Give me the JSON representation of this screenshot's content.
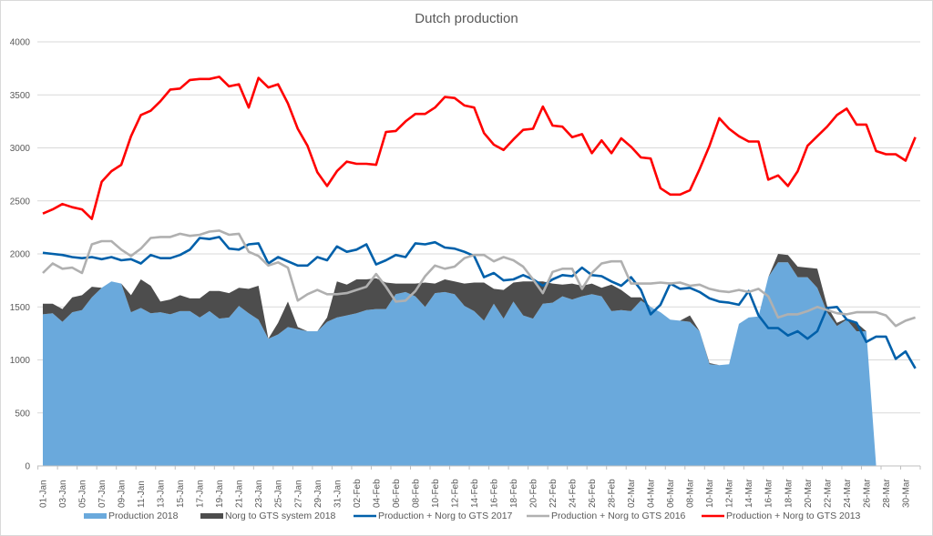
{
  "chart_data": {
    "type": "area+line",
    "title": "Dutch production",
    "xlabel": "",
    "ylabel": "",
    "ylim": [
      0,
      4000
    ],
    "yticks": [
      0,
      500,
      1000,
      1500,
      2000,
      2500,
      3000,
      3500,
      4000
    ],
    "grid": "horizontal",
    "legend_position": "bottom",
    "x": [
      "01-Jan",
      "02-Jan",
      "03-Jan",
      "04-Jan",
      "05-Jan",
      "06-Jan",
      "07-Jan",
      "08-Jan",
      "09-Jan",
      "10-Jan",
      "11-Jan",
      "12-Jan",
      "13-Jan",
      "14-Jan",
      "15-Jan",
      "16-Jan",
      "17-Jan",
      "18-Jan",
      "19-Jan",
      "20-Jan",
      "21-Jan",
      "22-Jan",
      "23-Jan",
      "24-Jan",
      "25-Jan",
      "26-Jan",
      "27-Jan",
      "28-Jan",
      "29-Jan",
      "30-Jan",
      "31-Jan",
      "01-Feb",
      "02-Feb",
      "03-Feb",
      "04-Feb",
      "05-Feb",
      "06-Feb",
      "07-Feb",
      "08-Feb",
      "09-Feb",
      "10-Feb",
      "11-Feb",
      "12-Feb",
      "13-Feb",
      "14-Feb",
      "15-Feb",
      "16-Feb",
      "17-Feb",
      "18-Feb",
      "19-Feb",
      "20-Feb",
      "21-Feb",
      "22-Feb",
      "23-Feb",
      "24-Feb",
      "25-Feb",
      "26-Feb",
      "27-Feb",
      "28-Feb",
      "01-Mar",
      "02-Mar",
      "03-Mar",
      "04-Mar",
      "05-Mar",
      "06-Mar",
      "07-Mar",
      "08-Mar",
      "09-Mar",
      "10-Mar",
      "11-Mar",
      "12-Mar",
      "13-Mar",
      "14-Mar",
      "15-Mar",
      "16-Mar",
      "17-Mar",
      "18-Mar",
      "19-Mar",
      "20-Mar",
      "21-Mar",
      "22-Mar",
      "23-Mar",
      "24-Mar",
      "25-Mar",
      "26-Mar",
      "27-Mar",
      "28-Mar",
      "29-Mar",
      "30-Mar",
      "31-Mar"
    ],
    "xtick_labels": [
      "01-Jan",
      "03-Jan",
      "05-Jan",
      "07-Jan",
      "09-Jan",
      "11-Jan",
      "13-Jan",
      "15-Jan",
      "17-Jan",
      "19-Jan",
      "21-Jan",
      "23-Jan",
      "25-Jan",
      "27-Jan",
      "29-Jan",
      "31-Jan",
      "02-Feb",
      "04-Feb",
      "06-Feb",
      "08-Feb",
      "10-Feb",
      "12-Feb",
      "14-Feb",
      "16-Feb",
      "18-Feb",
      "20-Feb",
      "22-Feb",
      "24-Feb",
      "26-Feb",
      "28-Feb",
      "02-Mar",
      "04-Mar",
      "06-Mar",
      "08-Mar",
      "10-Mar",
      "12-Mar",
      "14-Mar",
      "16-Mar",
      "18-Mar",
      "20-Mar",
      "22-Mar",
      "24-Mar",
      "26-Mar",
      "28-Mar",
      "30-Mar"
    ],
    "series": [
      {
        "name": "Production 2018",
        "kind": "stacked-area",
        "color": "#6aa9dc",
        "values": [
          1430,
          1440,
          1360,
          1450,
          1470,
          1590,
          1680,
          1740,
          1720,
          1450,
          1490,
          1440,
          1450,
          1430,
          1460,
          1460,
          1400,
          1460,
          1390,
          1400,
          1510,
          1440,
          1380,
          1200,
          1240,
          1310,
          1290,
          1270,
          1270,
          1360,
          1400,
          1420,
          1440,
          1470,
          1480,
          1480,
          1620,
          1640,
          1600,
          1500,
          1630,
          1640,
          1620,
          1510,
          1460,
          1370,
          1530,
          1390,
          1550,
          1420,
          1390,
          1530,
          1540,
          1600,
          1570,
          1600,
          1620,
          1600,
          1460,
          1470,
          1460,
          1560,
          1500,
          1450,
          1380,
          1370,
          1360,
          1270,
          960,
          950,
          960,
          1340,
          1400,
          1410,
          1780,
          1920,
          1920,
          1780,
          1780,
          1680,
          1450,
          1320,
          1380,
          1270,
          1270,
          0,
          null,
          null,
          null,
          null
        ]
      },
      {
        "name": "Norg to GTS system 2018",
        "kind": "stacked-area",
        "color": "#4d4d4d",
        "values": [
          100,
          90,
          120,
          140,
          140,
          100,
          0,
          0,
          0,
          160,
          270,
          260,
          100,
          140,
          150,
          120,
          180,
          190,
          260,
          230,
          170,
          230,
          320,
          0,
          110,
          240,
          20,
          0,
          0,
          40,
          340,
          290,
          320,
          290,
          290,
          250,
          100,
          80,
          120,
          230,
          90,
          120,
          120,
          210,
          270,
          360,
          140,
          270,
          180,
          320,
          350,
          210,
          180,
          110,
          150,
          100,
          100,
          80,
          250,
          190,
          130,
          30,
          0,
          0,
          0,
          0,
          60,
          0,
          10,
          0,
          0,
          0,
          0,
          0,
          0,
          80,
          70,
          100,
          90,
          180,
          60,
          30,
          10,
          80,
          0,
          0,
          null,
          null,
          null,
          null
        ]
      },
      {
        "name": "Production + Norg to GTS 2017",
        "kind": "line",
        "color": "#0060aa",
        "values": [
          2010,
          2000,
          1990,
          1970,
          1960,
          1970,
          1950,
          1970,
          1940,
          1950,
          1910,
          1990,
          1960,
          1960,
          1990,
          2040,
          2150,
          2140,
          2160,
          2050,
          2040,
          2090,
          2100,
          1910,
          1970,
          1930,
          1890,
          1890,
          1970,
          1940,
          2070,
          2020,
          2040,
          2090,
          1900,
          1940,
          1990,
          1970,
          2100,
          2090,
          2110,
          2060,
          2050,
          2020,
          1980,
          1780,
          1820,
          1750,
          1760,
          1800,
          1760,
          1700,
          1760,
          1800,
          1790,
          1870,
          1800,
          1790,
          1740,
          1700,
          1780,
          1660,
          1430,
          1520,
          1720,
          1670,
          1680,
          1640,
          1580,
          1550,
          1540,
          1520,
          1650,
          1420,
          1300,
          1300,
          1230,
          1270,
          1200,
          1270,
          1490,
          1500,
          1380,
          1350,
          1170,
          1220,
          1220,
          1010,
          1080,
          920
        ]
      },
      {
        "name": "Production + Norg to GTS 2016",
        "kind": "line",
        "color": "#b0b0b0",
        "values": [
          1820,
          1910,
          1860,
          1870,
          1820,
          2090,
          2120,
          2120,
          2040,
          1980,
          2050,
          2150,
          2160,
          2160,
          2190,
          2170,
          2180,
          2210,
          2220,
          2180,
          2190,
          2020,
          1980,
          1890,
          1920,
          1870,
          1560,
          1620,
          1660,
          1620,
          1620,
          1630,
          1660,
          1690,
          1810,
          1690,
          1550,
          1560,
          1650,
          1790,
          1890,
          1860,
          1880,
          1960,
          1990,
          1990,
          1930,
          1970,
          1940,
          1880,
          1760,
          1630,
          1830,
          1860,
          1860,
          1670,
          1820,
          1910,
          1930,
          1930,
          1720,
          1720,
          1720,
          1730,
          1720,
          1730,
          1700,
          1710,
          1670,
          1650,
          1640,
          1660,
          1640,
          1670,
          1600,
          1400,
          1430,
          1430,
          1460,
          1500,
          1470,
          1440,
          1430,
          1450,
          1450,
          1450,
          1420,
          1320,
          1370,
          1400
        ]
      },
      {
        "name": "Production + Norg to GTS 2013",
        "kind": "line",
        "color": "#ff0000",
        "values": [
          2380,
          2420,
          2470,
          2440,
          2420,
          2330,
          2680,
          2780,
          2840,
          3110,
          3310,
          3350,
          3440,
          3550,
          3560,
          3640,
          3650,
          3650,
          3670,
          3580,
          3600,
          3380,
          3660,
          3570,
          3600,
          3420,
          3180,
          3020,
          2770,
          2640,
          2780,
          2870,
          2850,
          2850,
          2840,
          3150,
          3160,
          3250,
          3320,
          3320,
          3380,
          3480,
          3470,
          3400,
          3380,
          3140,
          3030,
          2980,
          3080,
          3170,
          3180,
          3390,
          3210,
          3200,
          3100,
          3130,
          2950,
          3070,
          2950,
          3090,
          3010,
          2910,
          2900,
          2620,
          2560,
          2560,
          2600,
          2800,
          3020,
          3280,
          3180,
          3110,
          3060,
          3060,
          2700,
          2740,
          2640,
          2780,
          3020,
          3110,
          3200,
          3310,
          3370,
          3220,
          3220,
          2970,
          2940,
          2940,
          2880,
          3100
        ]
      }
    ]
  }
}
